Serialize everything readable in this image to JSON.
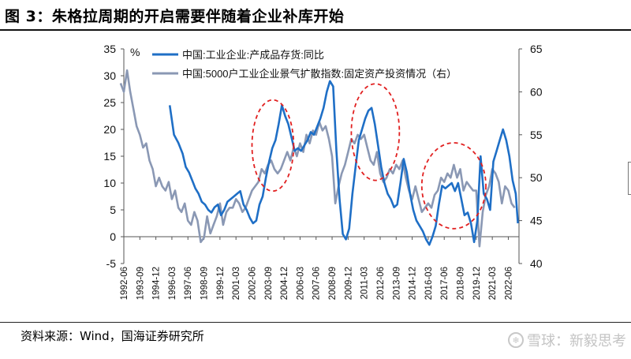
{
  "figure": {
    "title": "图 3：朱格拉周期的开启需要伴随着企业补库开始",
    "source": "资料来源：Wind，国海证券研究所",
    "watermark": "雪球：新毅思考"
  },
  "chart_data": {
    "type": "line",
    "x_ticks": [
      "1992-06",
      "1993-09",
      "1994-12",
      "1996-03",
      "1997-06",
      "1998-09",
      "1999-12",
      "2001-03",
      "2002-06",
      "2003-09",
      "2004-12",
      "2006-03",
      "2007-06",
      "2008-09",
      "2009-12",
      "2011-03",
      "2012-06",
      "2013-09",
      "2014-12",
      "2016-03",
      "2017-06",
      "2018-09",
      "2019-12",
      "2021-03",
      "2022-06"
    ],
    "left_axis": {
      "unit": "%",
      "ylim": [
        -5,
        35
      ],
      "ticks": [
        -5,
        0,
        5,
        10,
        15,
        20,
        25,
        30,
        35
      ]
    },
    "right_axis": {
      "ylim": [
        40,
        65
      ],
      "ticks": [
        40,
        45,
        50,
        55,
        60,
        65
      ]
    },
    "legend_placement": "top-center",
    "grid": false,
    "series": [
      {
        "name": "中国:工业企业:产成品存货:同比",
        "axis": "left",
        "color": "#1f6fc6",
        "points": [
          [
            "1996-01",
            24.5
          ],
          [
            "1996-05",
            19
          ],
          [
            "1996-09",
            17.5
          ],
          [
            "1997-01",
            15.5
          ],
          [
            "1997-04",
            13
          ],
          [
            "1997-07",
            12
          ],
          [
            "1997-10",
            10.5
          ],
          [
            "1998-01",
            9
          ],
          [
            "1998-04",
            8
          ],
          [
            "1998-07",
            6.5
          ],
          [
            "1998-10",
            6
          ],
          [
            "1999-01",
            5
          ],
          [
            "1999-04",
            4.5
          ],
          [
            "1999-07",
            5.5
          ],
          [
            "1999-10",
            6
          ],
          [
            "2000-01",
            4
          ],
          [
            "2000-04",
            5
          ],
          [
            "2000-07",
            6.5
          ],
          [
            "2000-10",
            7
          ],
          [
            "2001-01",
            7.5
          ],
          [
            "2001-04",
            8
          ],
          [
            "2001-07",
            8.5
          ],
          [
            "2001-10",
            6
          ],
          [
            "2002-01",
            5
          ],
          [
            "2002-04",
            3.5
          ],
          [
            "2002-07",
            2.5
          ],
          [
            "2002-10",
            3
          ],
          [
            "2003-01",
            6
          ],
          [
            "2003-04",
            7.5
          ],
          [
            "2003-07",
            11
          ],
          [
            "2003-10",
            14
          ],
          [
            "2004-01",
            16.5
          ],
          [
            "2004-04",
            18
          ],
          [
            "2004-07",
            21
          ],
          [
            "2004-10",
            24.5
          ],
          [
            "2005-01",
            22.5
          ],
          [
            "2005-04",
            21
          ],
          [
            "2005-07",
            18.5
          ],
          [
            "2005-10",
            16
          ],
          [
            "2006-01",
            16.5
          ],
          [
            "2006-04",
            16
          ],
          [
            "2006-07",
            17
          ],
          [
            "2006-10",
            18
          ],
          [
            "2007-01",
            19.5
          ],
          [
            "2007-04",
            19
          ],
          [
            "2007-07",
            20.5
          ],
          [
            "2007-10",
            22
          ],
          [
            "2008-01",
            24
          ],
          [
            "2008-04",
            27
          ],
          [
            "2008-07",
            29
          ],
          [
            "2008-10",
            28
          ],
          [
            "2009-01",
            16
          ],
          [
            "2009-04",
            7
          ],
          [
            "2009-07",
            0.5
          ],
          [
            "2009-10",
            -0.5
          ],
          [
            "2010-01",
            1.5
          ],
          [
            "2010-04",
            8
          ],
          [
            "2010-07",
            13
          ],
          [
            "2010-10",
            18
          ],
          [
            "2011-01",
            20
          ],
          [
            "2011-04",
            22
          ],
          [
            "2011-07",
            23.5
          ],
          [
            "2011-10",
            24
          ],
          [
            "2012-01",
            21
          ],
          [
            "2012-04",
            17
          ],
          [
            "2012-07",
            13
          ],
          [
            "2012-10",
            10
          ],
          [
            "2013-01",
            8
          ],
          [
            "2013-04",
            7
          ],
          [
            "2013-07",
            5.5
          ],
          [
            "2013-10",
            6
          ],
          [
            "2014-01",
            10
          ],
          [
            "2014-04",
            14.5
          ],
          [
            "2014-07",
            12
          ],
          [
            "2014-10",
            8
          ],
          [
            "2015-01",
            5
          ],
          [
            "2015-04",
            3
          ],
          [
            "2015-07",
            2
          ],
          [
            "2015-10",
            1
          ],
          [
            "2016-01",
            -0.5
          ],
          [
            "2016-04",
            -1.5
          ],
          [
            "2016-07",
            0
          ],
          [
            "2016-10",
            2
          ],
          [
            "2017-01",
            6
          ],
          [
            "2017-04",
            9.5
          ],
          [
            "2017-07",
            9
          ],
          [
            "2017-10",
            9.5
          ],
          [
            "2018-01",
            10
          ],
          [
            "2018-04",
            8.5
          ],
          [
            "2018-07",
            10
          ],
          [
            "2018-10",
            7
          ],
          [
            "2019-01",
            4
          ],
          [
            "2019-04",
            4.5
          ],
          [
            "2019-07",
            2.5
          ],
          [
            "2019-10",
            -1
          ],
          [
            "2020-01",
            3
          ],
          [
            "2020-04",
            15
          ],
          [
            "2020-07",
            8
          ],
          [
            "2020-10",
            7
          ],
          [
            "2021-01",
            5
          ],
          [
            "2021-04",
            14
          ],
          [
            "2021-07",
            16
          ],
          [
            "2021-10",
            18
          ],
          [
            "2022-01",
            20
          ],
          [
            "2022-04",
            18
          ],
          [
            "2022-07",
            15
          ],
          [
            "2022-10",
            10.5
          ],
          [
            "2023-01",
            8
          ],
          [
            "2023-03",
            2.5
          ]
        ]
      },
      {
        "name": "中国:5000户工业企业景气扩散指数:固定资产投资情况（右）",
        "axis": "right",
        "color": "#8a98b4",
        "points": [
          [
            "1992-03",
            61
          ],
          [
            "1992-06",
            60
          ],
          [
            "1992-09",
            62.5
          ],
          [
            "1992-12",
            60
          ],
          [
            "1993-03",
            58
          ],
          [
            "1993-06",
            56
          ],
          [
            "1993-09",
            55
          ],
          [
            "1993-12",
            53.5
          ],
          [
            "1994-03",
            54
          ],
          [
            "1994-06",
            52
          ],
          [
            "1994-09",
            51
          ],
          [
            "1994-12",
            49
          ],
          [
            "1995-03",
            50
          ],
          [
            "1995-06",
            49
          ],
          [
            "1995-09",
            48.5
          ],
          [
            "1995-12",
            49.5
          ],
          [
            "1996-03",
            47.5
          ],
          [
            "1996-06",
            48.5
          ],
          [
            "1996-09",
            46.5
          ],
          [
            "1996-12",
            46
          ],
          [
            "1997-03",
            47
          ],
          [
            "1997-06",
            45
          ],
          [
            "1997-09",
            44.5
          ],
          [
            "1997-12",
            46
          ],
          [
            "1998-03",
            45
          ],
          [
            "1998-06",
            42.5
          ],
          [
            "1998-09",
            43
          ],
          [
            "1998-12",
            45.5
          ],
          [
            "1999-03",
            43.5
          ],
          [
            "1999-06",
            44.5
          ],
          [
            "1999-09",
            45.5
          ],
          [
            "1999-12",
            47
          ],
          [
            "2000-03",
            44.5
          ],
          [
            "2000-06",
            46
          ],
          [
            "2000-09",
            46.5
          ],
          [
            "2000-12",
            46.5
          ],
          [
            "2001-03",
            47.5
          ],
          [
            "2001-06",
            47
          ],
          [
            "2001-09",
            46
          ],
          [
            "2001-12",
            46.5
          ],
          [
            "2002-03",
            47.5
          ],
          [
            "2002-06",
            48.5
          ],
          [
            "2002-09",
            49
          ],
          [
            "2002-12",
            49.5
          ],
          [
            "2003-03",
            51
          ],
          [
            "2003-06",
            50.5
          ],
          [
            "2003-09",
            51.5
          ],
          [
            "2003-12",
            52
          ],
          [
            "2004-03",
            51
          ],
          [
            "2004-06",
            50.5
          ],
          [
            "2004-09",
            51
          ],
          [
            "2004-12",
            52
          ],
          [
            "2005-03",
            53
          ],
          [
            "2005-06",
            52
          ],
          [
            "2005-09",
            53.5
          ],
          [
            "2005-12",
            52.5
          ],
          [
            "2006-03",
            54
          ],
          [
            "2006-06",
            53
          ],
          [
            "2006-09",
            55
          ],
          [
            "2006-12",
            54
          ],
          [
            "2007-03",
            55.5
          ],
          [
            "2007-06",
            55
          ],
          [
            "2007-09",
            56.5
          ],
          [
            "2007-12",
            55.5
          ],
          [
            "2008-03",
            56
          ],
          [
            "2008-06",
            54.5
          ],
          [
            "2008-09",
            52.5
          ],
          [
            "2008-12",
            47
          ],
          [
            "2009-03",
            49
          ],
          [
            "2009-06",
            50.5
          ],
          [
            "2009-09",
            51.5
          ],
          [
            "2009-12",
            53
          ],
          [
            "2010-03",
            54.5
          ],
          [
            "2010-06",
            54
          ],
          [
            "2010-09",
            55
          ],
          [
            "2010-12",
            54.5
          ],
          [
            "2011-03",
            55
          ],
          [
            "2011-06",
            53.5
          ],
          [
            "2011-09",
            52
          ],
          [
            "2011-12",
            51.5
          ],
          [
            "2012-03",
            53
          ],
          [
            "2012-06",
            50.5
          ],
          [
            "2012-09",
            49.5
          ],
          [
            "2012-12",
            50
          ],
          [
            "2013-03",
            51
          ],
          [
            "2013-06",
            50.5
          ],
          [
            "2013-09",
            51.5
          ],
          [
            "2013-12",
            51
          ],
          [
            "2014-03",
            52
          ],
          [
            "2014-06",
            50
          ],
          [
            "2014-09",
            48.5
          ],
          [
            "2014-12",
            47.5
          ],
          [
            "2015-03",
            49
          ],
          [
            "2015-06",
            47.5
          ],
          [
            "2015-09",
            46
          ],
          [
            "2015-12",
            46.5
          ],
          [
            "2016-03",
            47
          ],
          [
            "2016-06",
            46.5
          ],
          [
            "2016-09",
            48
          ],
          [
            "2016-12",
            48.5
          ],
          [
            "2017-03",
            50
          ],
          [
            "2017-06",
            49.5
          ],
          [
            "2017-09",
            50.5
          ],
          [
            "2017-12",
            50
          ],
          [
            "2018-03",
            51.5
          ],
          [
            "2018-06",
            50
          ],
          [
            "2018-09",
            51
          ],
          [
            "2018-12",
            48.5
          ],
          [
            "2019-03",
            49.5
          ],
          [
            "2019-06",
            49
          ],
          [
            "2019-09",
            48.5
          ],
          [
            "2019-12",
            48.5
          ],
          [
            "2020-03",
            42
          ],
          [
            "2020-06",
            46
          ],
          [
            "2020-09",
            48
          ],
          [
            "2020-12",
            49
          ],
          [
            "2021-03",
            51
          ],
          [
            "2021-06",
            50.5
          ],
          [
            "2021-09",
            49.5
          ],
          [
            "2021-12",
            47
          ],
          [
            "2022-03",
            49
          ],
          [
            "2022-06",
            48.5
          ],
          [
            "2022-09",
            47
          ],
          [
            "2022-12",
            46.5
          ]
        ]
      }
    ],
    "annotations": [
      {
        "type": "dashed-ellipse",
        "color": "#e12020",
        "x_range": [
          "2002-06",
          "2005-09"
        ],
        "y_range": [
          8.5,
          25.5
        ]
      },
      {
        "type": "dashed-ellipse",
        "color": "#e12020",
        "x_range": [
          "2010-03",
          "2013-12"
        ],
        "y_range": [
          10.5,
          28.5
        ]
      },
      {
        "type": "dashed-ellipse",
        "color": "#e12020",
        "x_range": [
          "2015-09",
          "2020-09"
        ],
        "y_range": [
          1.5,
          17.5
        ]
      }
    ]
  }
}
